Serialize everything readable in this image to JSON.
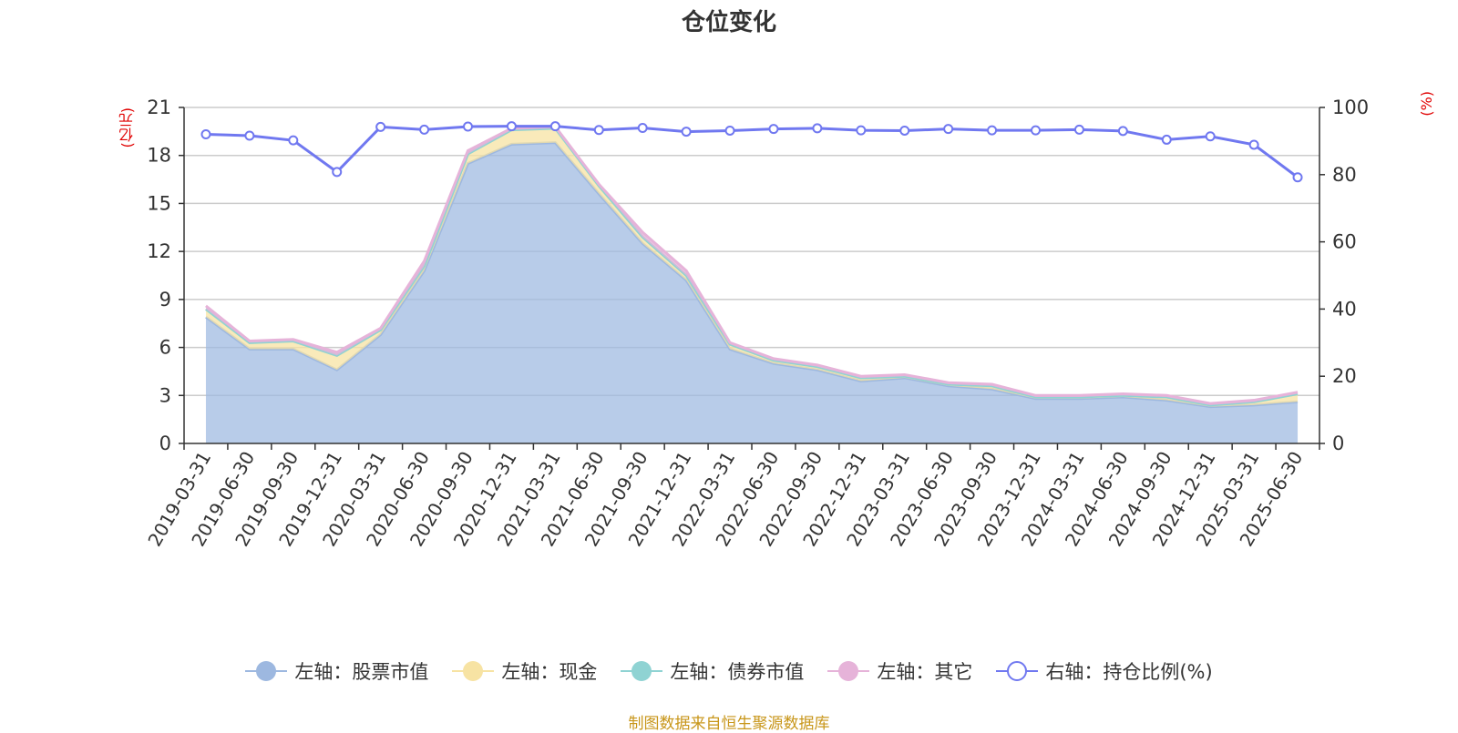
{
  "chart_data": {
    "type": "area",
    "title": "仓位变化",
    "left_axis_unit": "(亿元)",
    "right_axis_unit": "(%)",
    "categories": [
      "2019-03-31",
      "2019-06-30",
      "2019-09-30",
      "2019-12-31",
      "2020-03-31",
      "2020-06-30",
      "2020-09-30",
      "2020-12-31",
      "2021-03-31",
      "2021-06-30",
      "2021-09-30",
      "2021-12-31",
      "2022-03-31",
      "2022-06-30",
      "2022-09-30",
      "2022-12-31",
      "2023-03-31",
      "2023-06-30",
      "2023-09-30",
      "2023-12-31",
      "2024-03-31",
      "2024-06-30",
      "2024-09-30",
      "2024-12-31",
      "2025-03-31",
      "2025-06-30"
    ],
    "left_yticks": [
      0,
      3,
      6,
      9,
      12,
      15,
      18,
      21
    ],
    "right_yticks": [
      0,
      20,
      40,
      60,
      80,
      100
    ],
    "ylim_left": [
      0,
      21
    ],
    "ylim_right": [
      0,
      100
    ],
    "grid": true,
    "legend_position": "bottom",
    "series": [
      {
        "name": "左轴：股票市值",
        "axis": "left",
        "stack": true,
        "color": "#9db8e0",
        "values": [
          7.9,
          5.9,
          5.9,
          4.6,
          6.8,
          10.8,
          17.5,
          18.7,
          18.8,
          15.6,
          12.5,
          10.2,
          5.9,
          5.0,
          4.6,
          3.9,
          4.1,
          3.6,
          3.4,
          2.8,
          2.8,
          2.9,
          2.7,
          2.3,
          2.4,
          2.6
        ]
      },
      {
        "name": "左轴：现金",
        "axis": "left",
        "stack": true,
        "color": "#f7e3a3",
        "values": [
          0.5,
          0.4,
          0.5,
          0.9,
          0.3,
          0.3,
          0.6,
          0.9,
          0.9,
          0.5,
          0.4,
          0.3,
          0.3,
          0.2,
          0.2,
          0.2,
          0.1,
          0.1,
          0.2,
          0.1,
          0.1,
          0.1,
          0.2,
          0.1,
          0.2,
          0.5
        ]
      },
      {
        "name": "左轴：债券市值",
        "axis": "left",
        "stack": true,
        "color": "#8fd3d3",
        "values": [
          0,
          0,
          0,
          0,
          0,
          0,
          0,
          0,
          0,
          0,
          0,
          0,
          0,
          0,
          0,
          0,
          0,
          0,
          0,
          0,
          0,
          0,
          0,
          0,
          0,
          0
        ]
      },
      {
        "name": "左轴：其它",
        "axis": "left",
        "stack": true,
        "color": "#e6b3d9",
        "values": [
          0.2,
          0.1,
          0.1,
          0.2,
          0.1,
          0.3,
          0.2,
          0.1,
          0.1,
          0.1,
          0.3,
          0.3,
          0.1,
          0.1,
          0.1,
          0.1,
          0.1,
          0.1,
          0.1,
          0.1,
          0.1,
          0.1,
          0.1,
          0.1,
          0.1,
          0.1
        ]
      },
      {
        "name": "右轴：持仓比例(%)",
        "axis": "right",
        "stack": false,
        "color": "#7078f0",
        "values": [
          92.0,
          91.6,
          90.2,
          80.8,
          94.2,
          93.4,
          94.3,
          94.4,
          94.4,
          93.3,
          93.9,
          92.8,
          93.1,
          93.6,
          93.8,
          93.2,
          93.1,
          93.6,
          93.2,
          93.2,
          93.4,
          93.0,
          90.4,
          91.4,
          88.9,
          79.2
        ]
      }
    ]
  },
  "legend": [
    {
      "label": "左轴：股票市值",
      "color": "#9db8e0",
      "hollow": false
    },
    {
      "label": "左轴：现金",
      "color": "#f7e3a3",
      "hollow": false
    },
    {
      "label": "左轴：债券市值",
      "color": "#8fd3d3",
      "hollow": false
    },
    {
      "label": "左轴：其它",
      "color": "#e6b3d9",
      "hollow": false
    },
    {
      "label": "右轴：持仓比例(%)",
      "color": "#7078f0",
      "hollow": true
    }
  ],
  "source_text": "制图数据来自恒生聚源数据库"
}
